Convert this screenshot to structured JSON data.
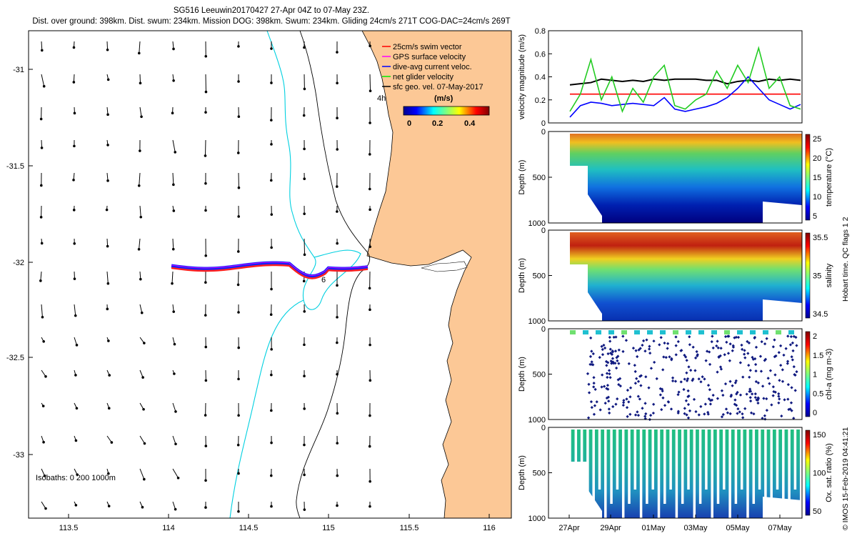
{
  "header": {
    "line1": "SG516 Leeuwin20170427 27-Apr 04Z to 07-May 23Z.",
    "line2": "Dist. over ground: 398km. Dist. swum: 234km. Mission DOG: 398km. Swum: 234km. Gliding 24cm/s 271T COG-DAC=24cm/s 269T"
  },
  "map": {
    "lon_ticks": [
      "113.5",
      "114",
      "114.5",
      "115",
      "115.5",
      "116"
    ],
    "lat_ticks": [
      "-31",
      "-31.5",
      "-32",
      "-32.5",
      "-33"
    ],
    "legend": [
      "25cm/s swim vector",
      "GPS surface velocity",
      "dive-avg current veloc.",
      "net glider velocity",
      "sfc geo. vel. 07-May-2017"
    ],
    "legend_colors": [
      "#ff0000",
      "#ff00ff",
      "#0000ff",
      "#00ee00",
      "#000000"
    ],
    "legend_note": "4h",
    "colorbar_title": "(m/s)",
    "colorbar_ticks": [
      "0",
      "0.2",
      "0.4"
    ],
    "isobaths_label": "Isobaths: 0   200  1000m",
    "track_marker": "6",
    "land_color": "#fcc896",
    "isobath_200_color": "#00d0e0"
  },
  "panels": [
    {
      "ylabel": "velocity magnitude (m/s)",
      "yticks": [
        "0",
        "0.2",
        "0.4",
        "0.6",
        "0.8"
      ]
    },
    {
      "ylabel": "Depth (m)",
      "yticks": [
        "0",
        "500",
        "1000"
      ],
      "cbar_label": "temperature (°C)",
      "cbar_ticks": [
        "5",
        "10",
        "15",
        "20",
        "25"
      ]
    },
    {
      "ylabel": "Depth (m)",
      "yticks": [
        "0",
        "500",
        "1000"
      ],
      "cbar_label": "salinity",
      "cbar_ticks": [
        "34.5",
        "35",
        "35.5"
      ]
    },
    {
      "ylabel": "Depth (m)",
      "yticks": [
        "0",
        "500",
        "1000"
      ],
      "cbar_label": "chl-a (mg m-3)",
      "cbar_ticks": [
        "0",
        "0.5",
        "1",
        "1.5",
        "2"
      ]
    },
    {
      "ylabel": "Depth (m)",
      "yticks": [
        "0",
        "500",
        "1000"
      ],
      "cbar_label": "Ox. sat. ratio (%)",
      "cbar_ticks": [
        "50",
        "100",
        "150"
      ]
    }
  ],
  "x_ticks": [
    "27Apr",
    "29Apr",
    "01May",
    "03May",
    "05May",
    "07May"
  ],
  "qc_note": "Hobart time. QC flags 1  2",
  "credit": "© IMOS 15-Feb-2019 04:41:21",
  "chart_data": {
    "type": "line",
    "title": "",
    "xlabel": "",
    "ylabel": "velocity magnitude (m/s)",
    "ylim": [
      0,
      0.8
    ],
    "x": [
      0.0,
      0.5,
      1.0,
      1.5,
      2.0,
      2.5,
      3.0,
      3.5,
      4.0,
      4.5,
      5.0,
      5.5,
      6.0,
      6.5,
      7.0,
      7.5,
      8.0,
      8.5,
      9.0,
      9.5,
      10.0,
      10.5,
      11.0
    ],
    "series": [
      {
        "color": "#ff0000",
        "values": [
          0.25,
          0.25,
          0.25,
          0.25,
          0.25,
          0.25,
          0.25,
          0.25,
          0.25,
          0.25,
          0.25,
          0.25,
          0.25,
          0.25,
          0.25,
          0.25,
          0.25,
          0.25,
          0.25,
          0.25,
          0.25,
          0.25,
          0.25
        ]
      },
      {
        "color": "#000000",
        "values": [
          0.33,
          0.34,
          0.35,
          0.38,
          0.37,
          0.36,
          0.37,
          0.36,
          0.38,
          0.37,
          0.38,
          0.38,
          0.38,
          0.37,
          0.37,
          0.34,
          0.36,
          0.37,
          0.36,
          0.38,
          0.37,
          0.38,
          0.37
        ]
      },
      {
        "color": "#0000ff",
        "values": [
          0.05,
          0.15,
          0.18,
          0.17,
          0.15,
          0.16,
          0.17,
          0.16,
          0.15,
          0.22,
          0.12,
          0.1,
          0.12,
          0.14,
          0.17,
          0.22,
          0.3,
          0.4,
          0.3,
          0.2,
          0.16,
          0.12,
          0.16
        ]
      },
      {
        "color": "#22cc22",
        "values": [
          0.1,
          0.25,
          0.55,
          0.2,
          0.4,
          0.1,
          0.3,
          0.18,
          0.4,
          0.5,
          0.15,
          0.12,
          0.2,
          0.25,
          0.45,
          0.3,
          0.5,
          0.35,
          0.65,
          0.3,
          0.4,
          0.15,
          0.12
        ]
      }
    ]
  }
}
